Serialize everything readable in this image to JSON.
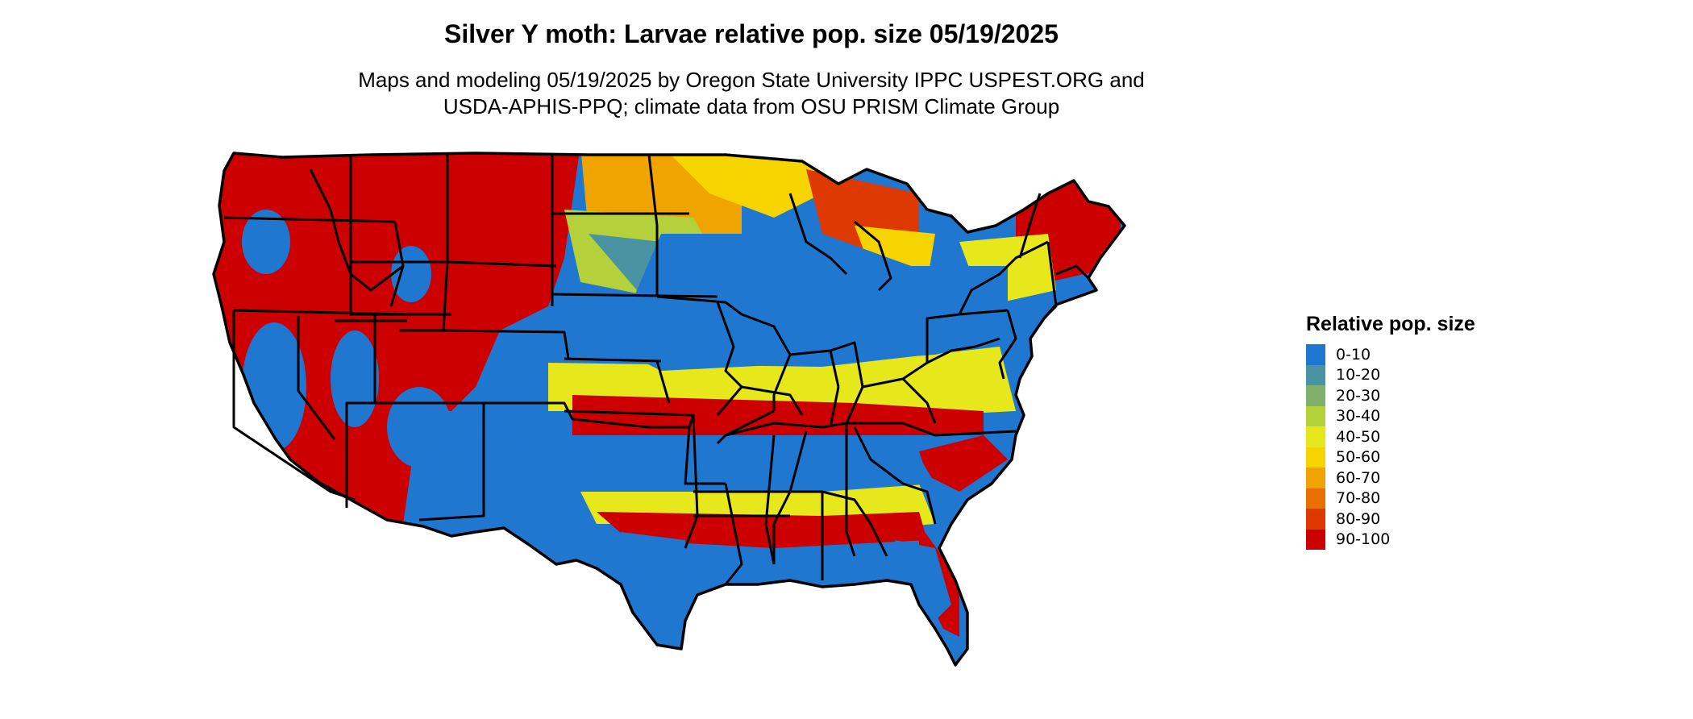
{
  "title": "Silver Y moth: Larvae relative pop. size 05/19/2025",
  "subtitle_line1": "Maps and modeling 05/19/2025 by Oregon State University IPPC USPEST.ORG and",
  "subtitle_line2": "USDA-APHIS-PPQ; climate data from OSU PRISM Climate Group",
  "legend": {
    "title": "Relative pop. size",
    "items": [
      {
        "label": "0-10",
        "color": "#1f77d0"
      },
      {
        "label": "10-20",
        "color": "#4a93a3"
      },
      {
        "label": "20-30",
        "color": "#7fb16c"
      },
      {
        "label": "30-40",
        "color": "#b4d03b"
      },
      {
        "label": "40-50",
        "color": "#e6e81b"
      },
      {
        "label": "50-60",
        "color": "#f5d400"
      },
      {
        "label": "60-70",
        "color": "#f0a400"
      },
      {
        "label": "70-80",
        "color": "#e87000"
      },
      {
        "label": "80-90",
        "color": "#de3a00"
      },
      {
        "label": "90-100",
        "color": "#cc0000"
      }
    ]
  },
  "map": {
    "region": "contiguous-united-states",
    "outline_color": "#000000",
    "default_fill": "#1f77d0"
  }
}
